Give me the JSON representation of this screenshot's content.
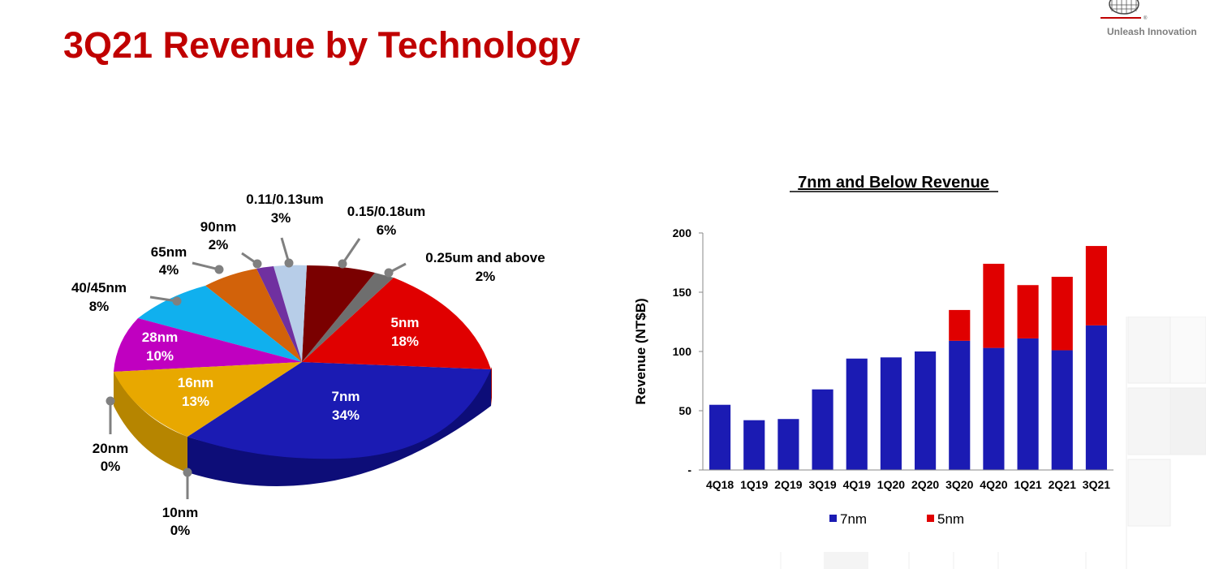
{
  "page": {
    "title": "3Q21 Revenue by Technology",
    "logo_tagline": "Unleash Innovation"
  },
  "colors": {
    "title": "#c00000",
    "series_7nm": "#1b1bb3",
    "series_5nm": "#e00000"
  },
  "chart_data": [
    {
      "type": "pie",
      "title": "",
      "slices": [
        {
          "label": "5nm",
          "pct": "18%",
          "value": 18,
          "color": "#e00000"
        },
        {
          "label": "7nm",
          "pct": "34%",
          "value": 34,
          "color": "#1b1bb3"
        },
        {
          "label": "10nm",
          "pct": "0%",
          "value": 0,
          "color": "#7a5200"
        },
        {
          "label": "16nm",
          "pct": "13%",
          "value": 13,
          "color": "#e8a800"
        },
        {
          "label": "20nm",
          "pct": "0%",
          "value": 0,
          "color": "#7a0000"
        },
        {
          "label": "28nm",
          "pct": "10%",
          "value": 10,
          "color": "#c000c0"
        },
        {
          "label": "40/45nm",
          "pct": "8%",
          "value": 8,
          "color": "#10b0ee"
        },
        {
          "label": "65nm",
          "pct": "4%",
          "value": 4,
          "color": "#d2620a"
        },
        {
          "label": "90nm",
          "pct": "2%",
          "value": 2,
          "color": "#7030a0"
        },
        {
          "label": "0.11/0.13um",
          "pct": "3%",
          "value": 3,
          "color": "#b7cde8"
        },
        {
          "label": "0.15/0.18um",
          "pct": "6%",
          "value": 6,
          "color": "#7a0000"
        },
        {
          "label": "0.25um and above",
          "pct": "2%",
          "value": 2,
          "color": "#6e6e6e"
        }
      ]
    },
    {
      "type": "bar",
      "stacked": true,
      "title": "7nm and Below Revenue",
      "xlabel": "",
      "ylabel": "Revenue (NT$B)",
      "ylim": [
        0,
        200
      ],
      "yticks": [
        {
          "value": 0,
          "label": "-"
        },
        {
          "value": 50,
          "label": "50"
        },
        {
          "value": 100,
          "label": "100"
        },
        {
          "value": 150,
          "label": "150"
        },
        {
          "value": 200,
          "label": "200"
        }
      ],
      "categories": [
        "4Q18",
        "1Q19",
        "2Q19",
        "3Q19",
        "4Q19",
        "1Q20",
        "2Q20",
        "3Q20",
        "4Q20",
        "1Q21",
        "2Q21",
        "3Q21"
      ],
      "series": [
        {
          "name": "7nm",
          "color": "#1b1bb3",
          "values": [
            55,
            42,
            43,
            68,
            94,
            95,
            100,
            109,
            103,
            111,
            101,
            122
          ]
        },
        {
          "name": "5nm",
          "color": "#e00000",
          "values": [
            0,
            0,
            0,
            0,
            0,
            0,
            0,
            26,
            71,
            45,
            62,
            67
          ]
        }
      ],
      "legend": "bottom"
    }
  ]
}
